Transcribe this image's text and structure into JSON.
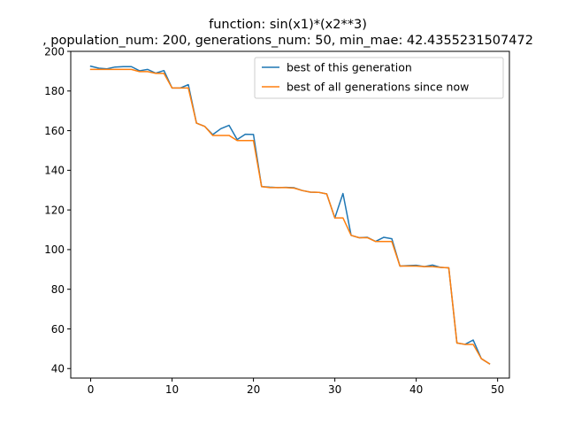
{
  "chart_data": {
    "type": "line",
    "title": "function:  sin(x1)*(x2**3)",
    "subtitle": ", population_num: 200, generations_num: 50, min_mae: 42.4355231507472",
    "xlabel": "",
    "ylabel": "",
    "xlim": [
      -2.45,
      51.45
    ],
    "ylim": [
      35.2,
      200
    ],
    "xticks": [
      0,
      10,
      20,
      30,
      40,
      50
    ],
    "yticks": [
      40,
      60,
      80,
      100,
      120,
      140,
      160,
      180,
      200
    ],
    "grid": false,
    "legend_position": "upper-right",
    "x": [
      0,
      1,
      2,
      3,
      4,
      5,
      6,
      7,
      8,
      9,
      10,
      11,
      12,
      13,
      14,
      15,
      16,
      17,
      18,
      19,
      20,
      21,
      22,
      23,
      24,
      25,
      26,
      27,
      28,
      29,
      30,
      31,
      32,
      33,
      34,
      35,
      36,
      37,
      38,
      39,
      40,
      41,
      42,
      43,
      44,
      45,
      46,
      47,
      48,
      49
    ],
    "series": [
      {
        "name": "best of this generation",
        "color": "#1f77b4",
        "values": [
          192.5,
          191.5,
          191.2,
          192.1,
          192.3,
          192.3,
          190.2,
          190.9,
          189.0,
          190.3,
          181.5,
          181.5,
          183.2,
          163.8,
          162.2,
          158.0,
          161.0,
          162.7,
          155.5,
          158.2,
          158.1,
          131.8,
          131.5,
          131.3,
          131.4,
          131.2,
          129.8,
          129.0,
          128.9,
          128.1,
          116.0,
          128.3,
          107.2,
          106.0,
          106.2,
          104.1,
          106.2,
          105.5,
          91.7,
          91.9,
          92.1,
          91.4,
          92.2,
          91.0,
          90.8,
          52.9,
          52.2,
          54.4,
          45.0,
          42.4
        ]
      },
      {
        "name": "best of all generations since now",
        "color": "#ff7f0e",
        "values": [
          190.9,
          190.9,
          190.9,
          190.9,
          190.9,
          190.9,
          189.8,
          189.8,
          188.9,
          188.9,
          181.5,
          181.5,
          181.5,
          163.8,
          162.2,
          157.6,
          157.6,
          157.6,
          155.0,
          155.0,
          155.0,
          131.8,
          131.3,
          131.3,
          131.3,
          131.0,
          129.8,
          129.0,
          128.9,
          128.1,
          116.0,
          116.0,
          107.2,
          106.0,
          106.0,
          104.1,
          104.1,
          104.1,
          91.7,
          91.7,
          91.7,
          91.4,
          91.4,
          91.0,
          90.8,
          52.9,
          52.2,
          52.2,
          45.0,
          42.4
        ]
      }
    ]
  }
}
